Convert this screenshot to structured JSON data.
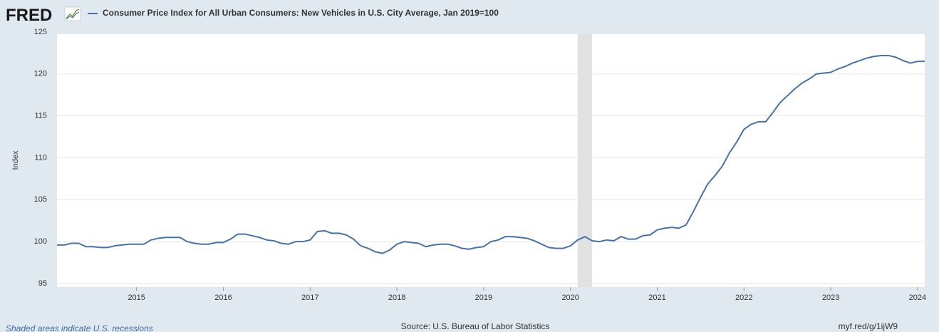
{
  "chart_data": {
    "type": "line",
    "logo": "FRED",
    "ylabel": "Index",
    "note": "Shaded areas indicate U.S. recessions",
    "source": "Source: U.S. Bureau of Labor Statistics",
    "link": "myf.red/g/1ijW9",
    "xlim": [
      2014.083,
      2024.083
    ],
    "xticks": [
      2015,
      2016,
      2017,
      2018,
      2019,
      2020,
      2021,
      2022,
      2023,
      2024
    ],
    "ylim": [
      95,
      125
    ],
    "yticks": [
      95,
      100,
      105,
      110,
      115,
      120,
      125
    ],
    "grid": true,
    "recessions": [
      [
        2020.083,
        2020.25
      ]
    ],
    "recession_color": "#e1e1e1",
    "x": [
      2014.083,
      2014.167,
      2014.25,
      2014.333,
      2014.417,
      2014.5,
      2014.583,
      2014.667,
      2014.75,
      2014.833,
      2014.917,
      2015,
      2015.083,
      2015.167,
      2015.25,
      2015.333,
      2015.417,
      2015.5,
      2015.583,
      2015.667,
      2015.75,
      2015.833,
      2015.917,
      2016,
      2016.083,
      2016.167,
      2016.25,
      2016.333,
      2016.417,
      2016.5,
      2016.583,
      2016.667,
      2016.75,
      2016.833,
      2016.917,
      2017,
      2017.083,
      2017.167,
      2017.25,
      2017.333,
      2017.417,
      2017.5,
      2017.583,
      2017.667,
      2017.75,
      2017.833,
      2017.917,
      2018,
      2018.083,
      2018.167,
      2018.25,
      2018.333,
      2018.417,
      2018.5,
      2018.583,
      2018.667,
      2018.75,
      2018.833,
      2018.917,
      2019,
      2019.083,
      2019.167,
      2019.25,
      2019.333,
      2019.417,
      2019.5,
      2019.583,
      2019.667,
      2019.75,
      2019.833,
      2019.917,
      2020,
      2020.083,
      2020.167,
      2020.25,
      2020.333,
      2020.417,
      2020.5,
      2020.583,
      2020.667,
      2020.75,
      2020.833,
      2020.917,
      2021,
      2021.083,
      2021.167,
      2021.25,
      2021.333,
      2021.417,
      2021.5,
      2021.583,
      2021.667,
      2021.75,
      2021.833,
      2021.917,
      2022,
      2022.083,
      2022.167,
      2022.25,
      2022.333,
      2022.417,
      2022.5,
      2022.583,
      2022.667,
      2022.75,
      2022.833,
      2022.917,
      2023,
      2023.083,
      2023.167,
      2023.25,
      2023.333,
      2023.417,
      2023.5,
      2023.583,
      2023.667,
      2023.75,
      2023.833,
      2023.917,
      2024,
      2024.083
    ],
    "series": [
      {
        "name": "Consumer Price Index for All Urban Consumers: New Vehicles in U.S. City Average, Jan 2019=100",
        "color": "#4572a7",
        "values": [
          99.6,
          99.6,
          99.8,
          99.8,
          99.4,
          99.4,
          99.3,
          99.3,
          99.5,
          99.6,
          99.7,
          99.7,
          99.7,
          100.2,
          100.4,
          100.5,
          100.5,
          100.5,
          100.0,
          99.8,
          99.7,
          99.7,
          99.9,
          99.9,
          100.3,
          100.9,
          100.9,
          100.7,
          100.5,
          100.2,
          100.1,
          99.8,
          99.7,
          100.0,
          100.0,
          100.2,
          101.2,
          101.3,
          101.0,
          101.0,
          100.8,
          100.3,
          99.5,
          99.2,
          98.8,
          98.6,
          99.0,
          99.7,
          100.0,
          99.9,
          99.8,
          99.4,
          99.6,
          99.7,
          99.7,
          99.5,
          99.2,
          99.1,
          99.3,
          99.4,
          100.0,
          100.2,
          100.6,
          100.6,
          100.5,
          100.4,
          100.1,
          99.7,
          99.3,
          99.2,
          99.2,
          99.5,
          100.2,
          100.6,
          100.1,
          100.0,
          100.2,
          100.1,
          100.6,
          100.3,
          100.3,
          100.7,
          100.8,
          101.4,
          101.6,
          101.7,
          101.6,
          102.0,
          103.6,
          105.3,
          106.9,
          107.9,
          109.0,
          110.6,
          111.9,
          113.4,
          114.0,
          114.3,
          114.3,
          115.4,
          116.6,
          117.4,
          118.2,
          118.9,
          119.4,
          120.0,
          120.1,
          120.2,
          120.6,
          120.9,
          121.3,
          121.6,
          121.9,
          122.1,
          122.2,
          122.2,
          122.0,
          121.6,
          121.3,
          121.5,
          121.5
        ]
      }
    ]
  }
}
